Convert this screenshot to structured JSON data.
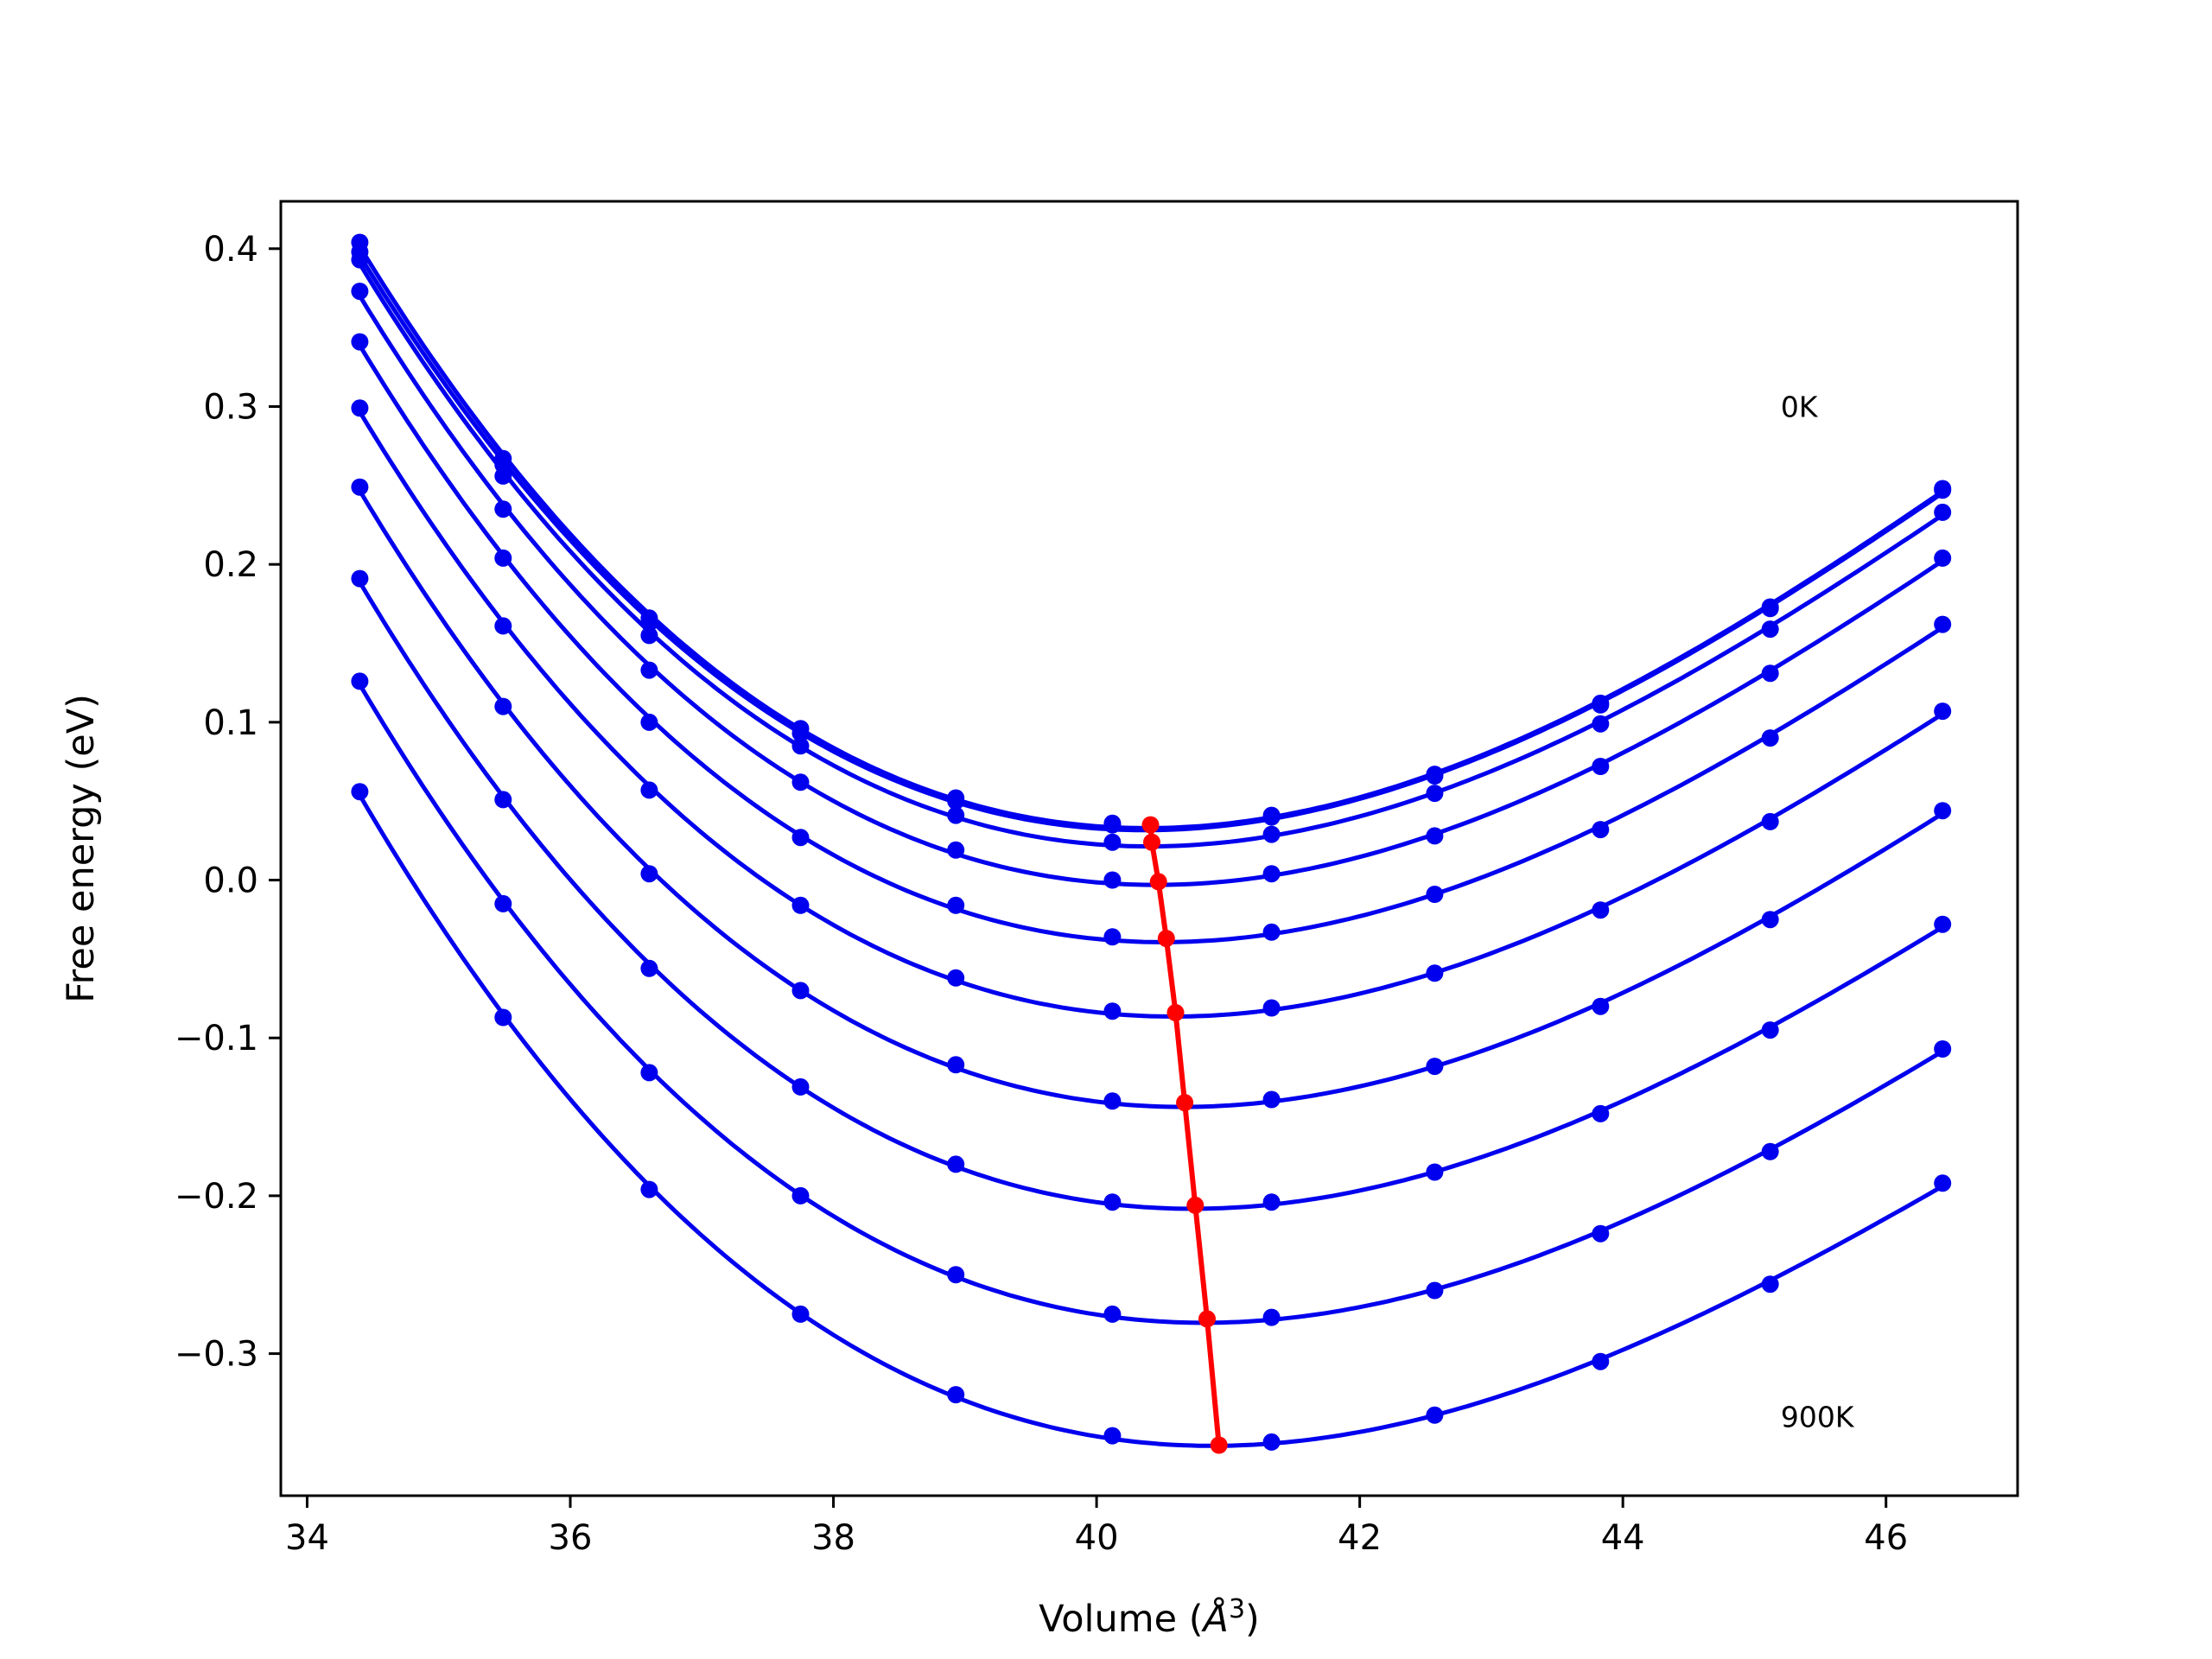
{
  "chart_data": {
    "type": "line",
    "title": "",
    "xlabel": "Volume (",
    "xlabel_symbol": "Å",
    "xlabel_exponent": "3",
    "xlabel_close": ")",
    "ylabel": "Free energy (eV)",
    "xlim": [
      33.8,
      47.0
    ],
    "ylim": [
      -0.39,
      0.43
    ],
    "xticks": [
      34,
      36,
      38,
      40,
      42,
      44,
      46
    ],
    "xtick_labels": [
      "34",
      "36",
      "38",
      "40",
      "42",
      "44",
      "46"
    ],
    "yticks": [
      -0.3,
      -0.2,
      -0.1,
      0.0,
      0.1,
      0.2,
      0.3,
      0.4
    ],
    "ytick_labels": [
      "−0.3",
      "−0.2",
      "−0.1",
      "0.0",
      "0.1",
      "0.2",
      "0.3",
      "0.4"
    ],
    "grid": false,
    "curve_color": "#0000ee",
    "minimum_color": "#ff0000",
    "annotations": [
      {
        "text": "0K",
        "x": 45.2,
        "y": 0.3
      },
      {
        "text": "900K",
        "x": 45.2,
        "y": -0.34
      }
    ],
    "x": [
      34.4,
      35.49,
      36.6,
      37.75,
      38.93,
      40.12,
      41.33,
      42.57,
      43.83,
      45.12,
      46.43
    ],
    "series": [
      {
        "values": [
          0.404,
          0.267,
          0.166,
          0.096,
          0.052,
          0.036,
          0.041,
          0.067,
          0.112,
          0.173,
          0.248
        ]
      },
      {
        "values": [
          0.398,
          0.263,
          0.163,
          0.093,
          0.05,
          0.035,
          0.04,
          0.066,
          0.111,
          0.172,
          0.247
        ]
      },
      {
        "values": [
          0.393,
          0.256,
          0.155,
          0.085,
          0.041,
          0.024,
          0.029,
          0.055,
          0.099,
          0.159,
          0.233
        ]
      },
      {
        "values": [
          0.373,
          0.235,
          0.133,
          0.062,
          0.019,
          0.0,
          0.004,
          0.028,
          0.072,
          0.131,
          0.204
        ]
      },
      {
        "values": [
          0.341,
          0.204,
          0.1,
          0.027,
          -0.016,
          -0.036,
          -0.033,
          -0.009,
          0.032,
          0.09,
          0.162
        ]
      },
      {
        "values": [
          0.299,
          0.161,
          0.057,
          -0.016,
          -0.062,
          -0.083,
          -0.081,
          -0.059,
          -0.019,
          0.037,
          0.107
        ]
      },
      {
        "values": [
          0.249,
          0.11,
          0.004,
          -0.07,
          -0.117,
          -0.14,
          -0.139,
          -0.118,
          -0.08,
          -0.025,
          0.044
        ]
      },
      {
        "values": [
          0.191,
          0.051,
          -0.056,
          -0.131,
          -0.18,
          -0.204,
          -0.204,
          -0.185,
          -0.148,
          -0.095,
          -0.028
        ]
      },
      {
        "values": [
          0.126,
          -0.015,
          -0.122,
          -0.2,
          -0.25,
          -0.275,
          -0.277,
          -0.26,
          -0.224,
          -0.172,
          -0.107
        ]
      },
      {
        "values": [
          0.056,
          -0.087,
          -0.196,
          -0.275,
          -0.326,
          -0.352,
          -0.356,
          -0.339,
          -0.305,
          -0.256,
          -0.192
        ]
      }
    ],
    "minima": {
      "x": [
        40.41,
        40.42,
        40.47,
        40.53,
        40.6,
        40.67,
        40.75,
        40.84,
        40.93
      ],
      "y": [
        0.035,
        0.024,
        -0.001,
        -0.037,
        -0.084,
        -0.141,
        -0.206,
        -0.278,
        -0.358
      ]
    }
  }
}
